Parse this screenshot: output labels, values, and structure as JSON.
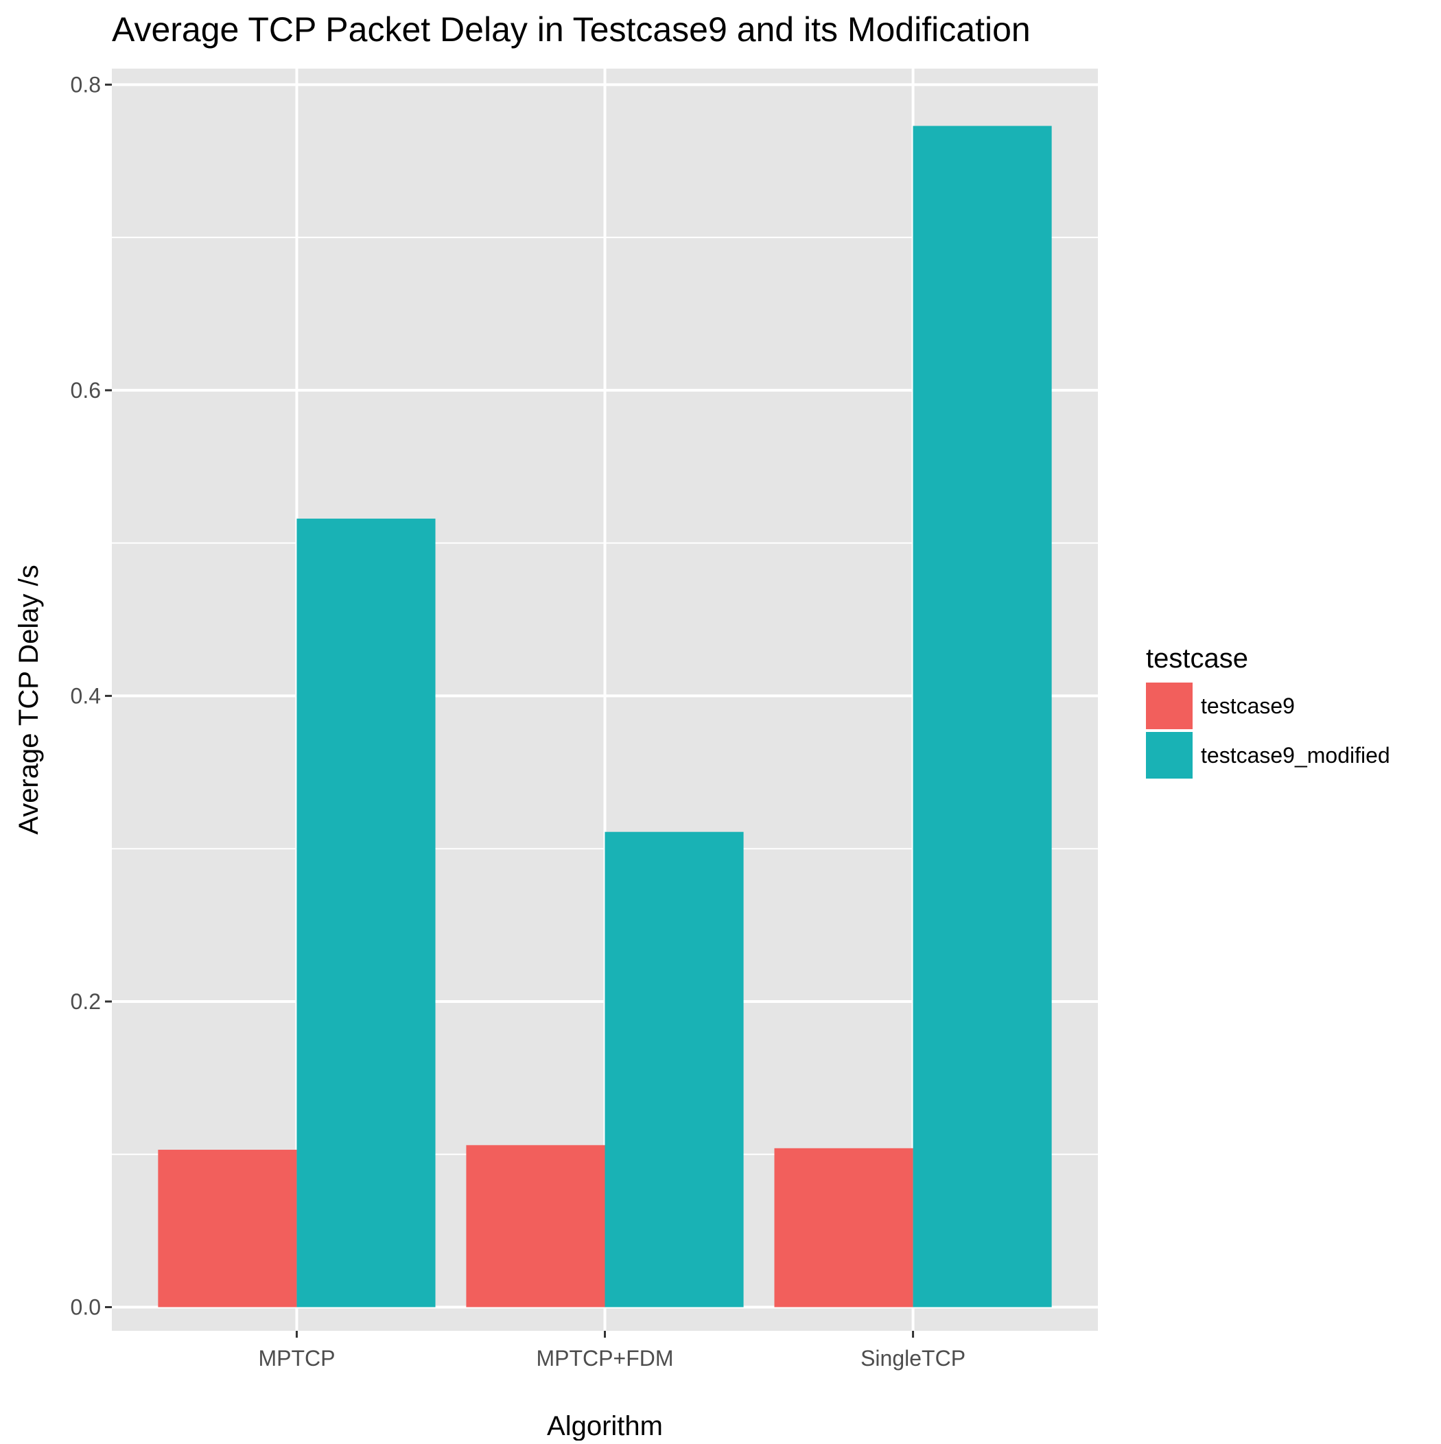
{
  "chart_data": {
    "type": "bar",
    "title": "Average TCP Packet Delay in Testcase9 and its Modification",
    "xlabel": "Algorithm",
    "ylabel": "Average TCP Delay /s",
    "categories": [
      "MPTCP",
      "MPTCP+FDM",
      "SingleTCP"
    ],
    "series": [
      {
        "name": "testcase9",
        "values": [
          0.103,
          0.106,
          0.104
        ],
        "color": "#F25F5C"
      },
      {
        "name": "testcase9_modified",
        "values": [
          0.516,
          0.311,
          0.773
        ],
        "color": "#19B2B5"
      }
    ],
    "ylim": [
      -0.0155,
      0.8105
    ],
    "yticks": [
      0.0,
      0.2,
      0.4,
      0.6,
      0.8
    ],
    "ytick_labels": [
      "0.0",
      "0.2",
      "0.4",
      "0.6",
      "0.8"
    ],
    "grid": true,
    "panel_background": "#E5E5E5",
    "grid_color": "#FFFFFF",
    "legend": {
      "title": "testcase",
      "position": "right",
      "items": [
        "testcase9",
        "testcase9_modified"
      ]
    }
  }
}
